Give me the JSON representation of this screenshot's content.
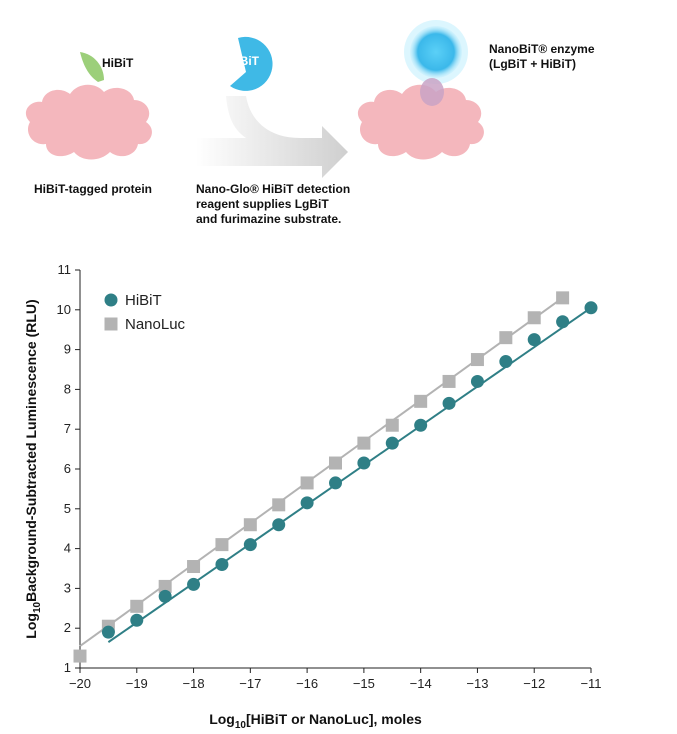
{
  "diagram": {
    "hibit_label": "HiBiT",
    "lgbit_label": "LgBiT",
    "enzyme_label_line1": "NanoBiT® enzyme",
    "enzyme_label_line2": "(LgBiT + HiBiT)",
    "tagged_protein_label": "HiBiT-tagged protein",
    "reagent_line1": "Nano-Glo® HiBiT detection",
    "reagent_line2": "reagent supplies LgBiT",
    "reagent_line3": "and furimazine substrate.",
    "colors": {
      "protein": "#f4b7bd",
      "hibit_leaf": "#9ccf7a",
      "lgbit": "#3fb9e6",
      "glow": "#6fd3f7",
      "arrow": "#d9d9d9"
    }
  },
  "chart_data": {
    "type": "scatter",
    "xlabel_main": "Log",
    "xlabel_sub": "10",
    "xlabel_rest": "[HiBiT or NanoLuc], moles",
    "ylabel_main": "Log",
    "ylabel_sub": "10",
    "ylabel_rest": "Background-Subtracted Luminescence (RLU)",
    "xlim": [
      -20,
      -11
    ],
    "ylim": [
      1,
      11
    ],
    "x_ticks": [
      "−20",
      "−19",
      "−18",
      "−17",
      "−16",
      "−15",
      "−14",
      "−13",
      "−12",
      "−11"
    ],
    "y_ticks": [
      "1",
      "2",
      "3",
      "4",
      "5",
      "6",
      "7",
      "8",
      "9",
      "10",
      "11"
    ],
    "grid": false,
    "legend_position": "top-left",
    "series": [
      {
        "name": "HiBiT",
        "marker": "circle",
        "color": "#2f7f86",
        "x": [
          -19.5,
          -19,
          -18.5,
          -18,
          -17.5,
          -17,
          -16.5,
          -16,
          -15.5,
          -15,
          -14.5,
          -14,
          -13.5,
          -13,
          -12.5,
          -12,
          -11.5,
          -11
        ],
        "y": [
          1.9,
          2.2,
          2.8,
          3.1,
          3.6,
          4.1,
          4.6,
          5.15,
          5.65,
          6.15,
          6.65,
          7.1,
          7.65,
          8.2,
          8.7,
          9.25,
          9.7,
          10.05
        ],
        "fit": {
          "x": [
            -19.5,
            -11
          ],
          "y": [
            1.65,
            10.05
          ]
        }
      },
      {
        "name": "NanoLuc",
        "marker": "square",
        "color": "#b3b3b3",
        "x": [
          -20,
          -19.5,
          -19,
          -18.5,
          -18,
          -17.5,
          -17,
          -16.5,
          -16,
          -15.5,
          -15,
          -14.5,
          -14,
          -13.5,
          -13,
          -12.5,
          -12,
          -11.5
        ],
        "y": [
          1.3,
          2.05,
          2.55,
          3.05,
          3.55,
          4.1,
          4.6,
          5.1,
          5.65,
          6.15,
          6.65,
          7.1,
          7.7,
          8.2,
          8.75,
          9.3,
          9.8,
          10.3
        ],
        "fit": {
          "x": [
            -20,
            -11.5
          ],
          "y": [
            1.55,
            10.3
          ]
        }
      }
    ]
  }
}
